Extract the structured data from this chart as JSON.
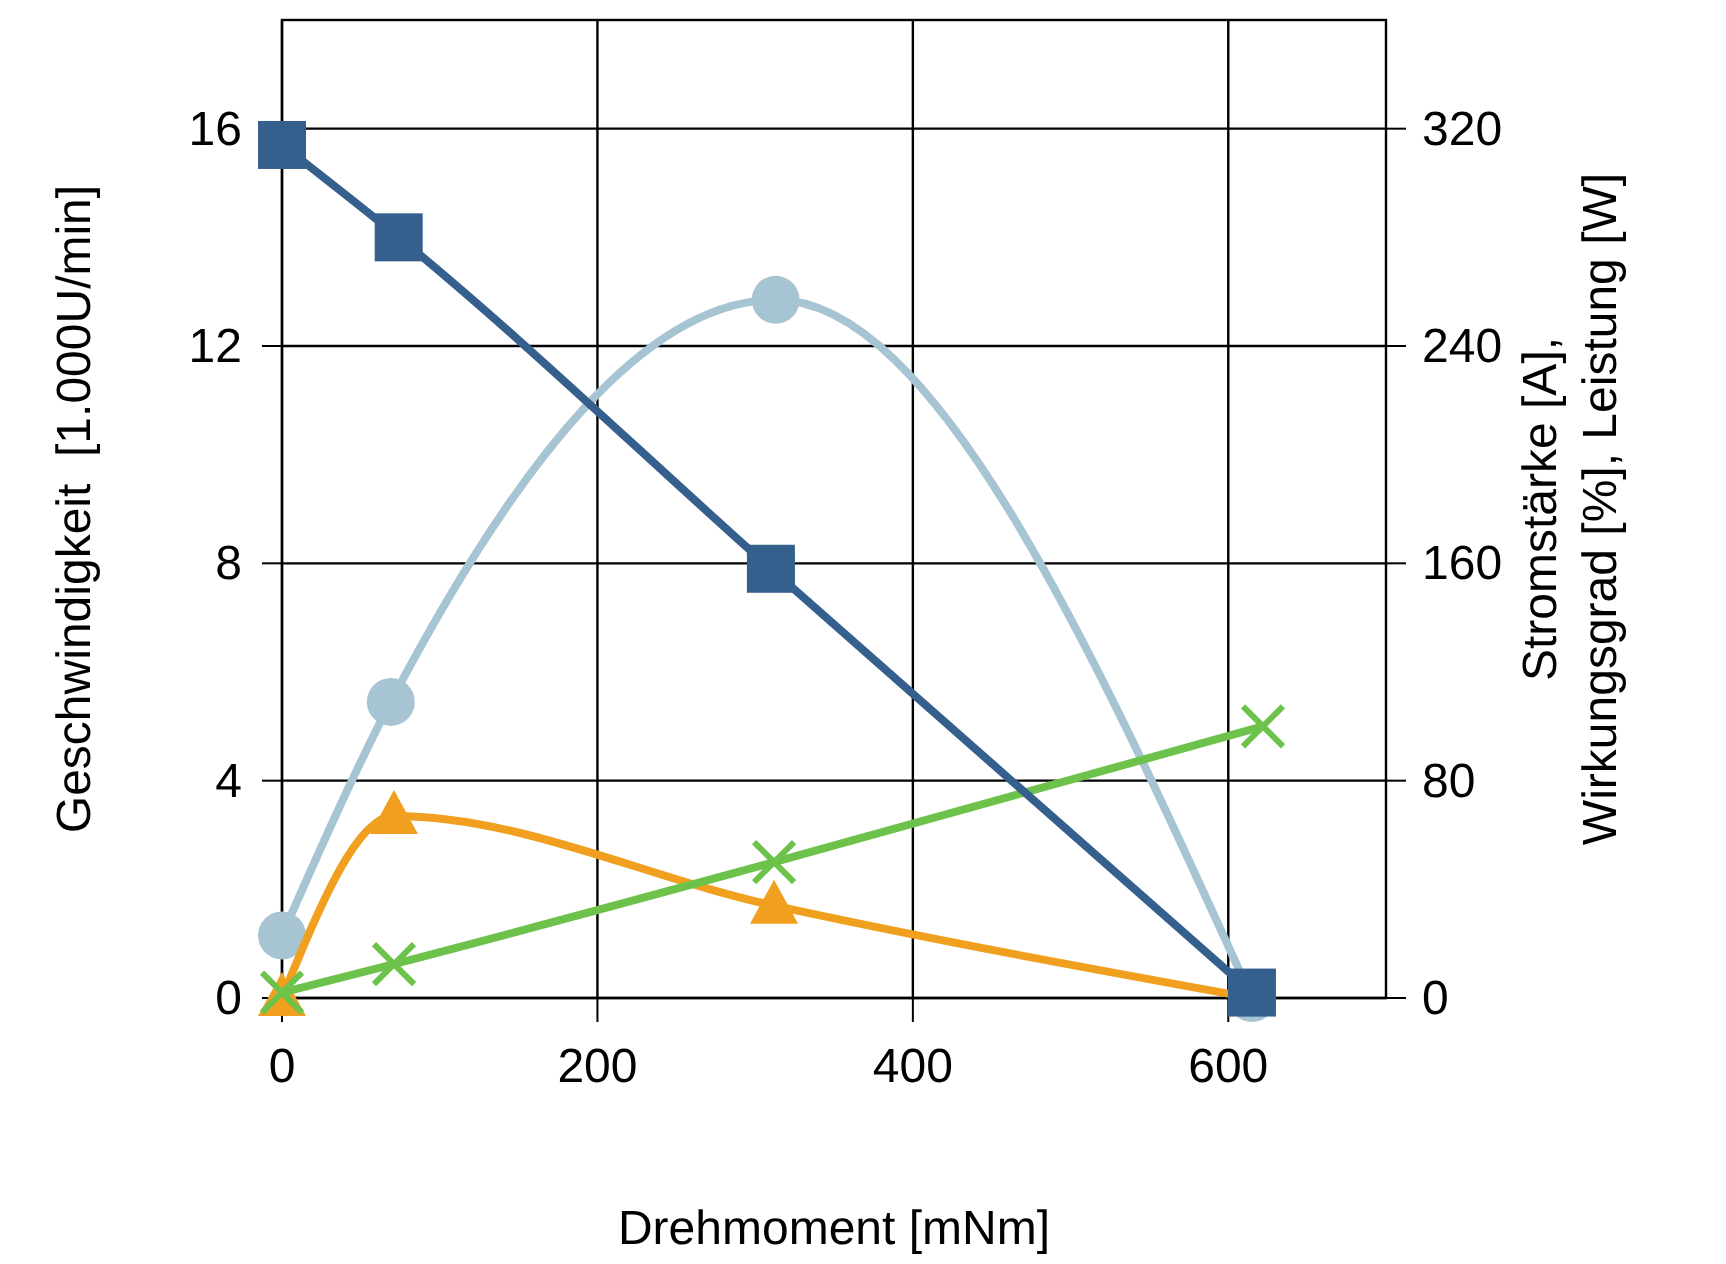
{
  "chart_data": {
    "type": "line",
    "xlabel": "Drehmoment [mNm]",
    "ylabel": "Geschwindigkeit  [1.000U/min]",
    "y2label": "Stromstärke [A],\nWirkungsgrad [%], Leistung [W]",
    "xlim": [
      0,
      700
    ],
    "xticks": [
      0,
      200,
      400,
      600
    ],
    "ylim": [
      0,
      18
    ],
    "yticks": [
      0,
      4,
      8,
      12,
      16
    ],
    "y2lim": [
      0,
      360
    ],
    "y2ticks": [
      0,
      80,
      160,
      240,
      320
    ],
    "grid": true,
    "line_style": "solid",
    "series": [
      {
        "color": "#a7c4d3",
        "marker": "circle",
        "axis": "y2",
        "x": [
          0,
          69,
          313,
          615
        ],
        "values": [
          23,
          109,
          257,
          0
        ]
      },
      {
        "color": "#f0a01e",
        "marker": "triangle",
        "axis": "y2",
        "x": [
          0,
          71,
          312,
          615
        ],
        "values": [
          0,
          67,
          34,
          0
        ]
      },
      {
        "color": "#6cc24a",
        "marker": "cross",
        "axis": "y2",
        "x": [
          0,
          71,
          312,
          622
        ],
        "values": [
          2,
          12.5,
          50,
          100
        ]
      },
      {
        "color": "#355f8c",
        "marker": "square",
        "axis": "y",
        "x": [
          0,
          74,
          310,
          615
        ],
        "values": [
          15.7,
          14,
          7.9,
          0.1
        ]
      }
    ]
  }
}
